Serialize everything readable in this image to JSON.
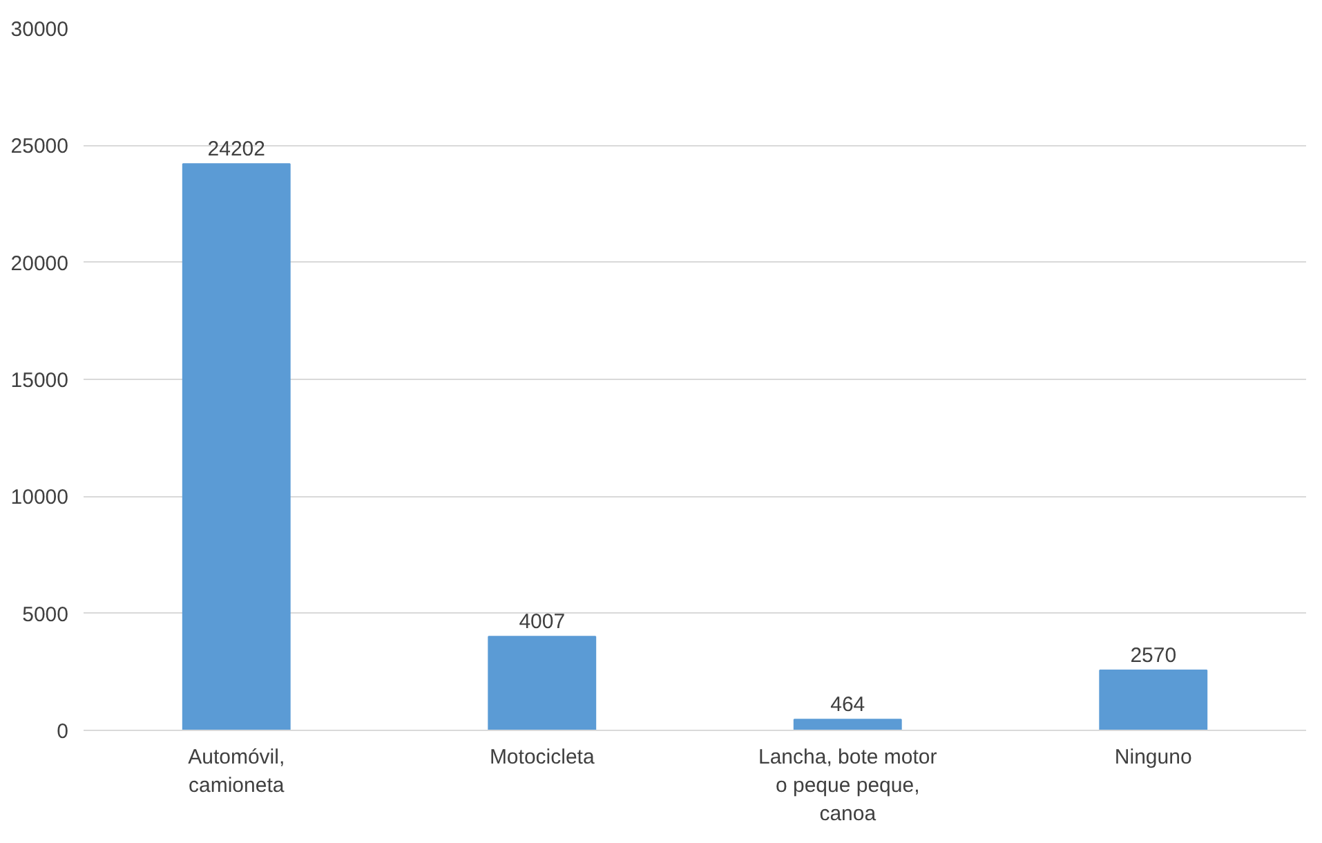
{
  "chart_data": {
    "type": "bar",
    "categories": [
      "Automóvil, camioneta",
      "Motocicleta",
      "Lancha, bote motor o peque peque, canoa",
      "Ninguno"
    ],
    "values": [
      24202,
      4007,
      464,
      2570
    ],
    "color": "#5b9bd5",
    "ylim": [
      0,
      30000
    ],
    "yticks": [
      0,
      5000,
      10000,
      15000,
      20000,
      25000,
      30000
    ],
    "grid": "y",
    "data_labels": true
  }
}
